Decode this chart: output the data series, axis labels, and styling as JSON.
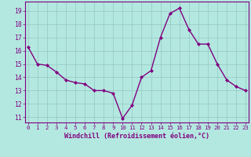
{
  "hours": [
    0,
    1,
    2,
    3,
    4,
    5,
    6,
    7,
    8,
    9,
    10,
    11,
    12,
    13,
    14,
    15,
    16,
    17,
    18,
    19,
    20,
    21,
    22,
    23
  ],
  "values": [
    16.3,
    15.0,
    14.9,
    14.4,
    13.8,
    13.6,
    13.5,
    13.0,
    13.0,
    12.8,
    10.9,
    11.9,
    14.0,
    14.5,
    17.0,
    18.8,
    19.2,
    17.6,
    16.5,
    16.5,
    15.0,
    13.8,
    13.3,
    13.0
  ],
  "line_color": "#800080",
  "marker": "D",
  "markersize": 2.0,
  "bg_color": "#b3e8e0",
  "grid_color": "#99ccc4",
  "ylim": [
    10.6,
    19.7
  ],
  "yticks": [
    11,
    12,
    13,
    14,
    15,
    16,
    17,
    18,
    19
  ],
  "xlim": [
    -0.3,
    23.3
  ],
  "xlabel": "Windchill (Refroidissement éolien,°C)",
  "xlabel_color": "#800080",
  "tick_color": "#800080",
  "spine_color": "#800080",
  "linewidth": 1.0,
  "xlabel_fontsize": 6.0,
  "xtick_fontsize": 5.2,
  "ytick_fontsize": 5.8
}
